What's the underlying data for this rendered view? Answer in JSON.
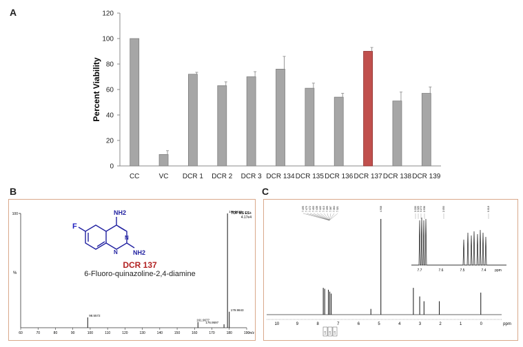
{
  "panels": {
    "a": "A",
    "b": "B",
    "c": "C"
  },
  "chart_data": [
    {
      "type": "bar",
      "panel": "A",
      "ylabel": "Percent Viability",
      "xlabel": "",
      "ylim": [
        0,
        120
      ],
      "yticks": [
        0,
        20,
        40,
        60,
        80,
        100,
        120
      ],
      "categories": [
        "CC",
        "VC",
        "DCR 1",
        "DCR 2",
        "DCR 3",
        "DCR 134",
        "DCR 135",
        "DCR 136",
        "DCR 137",
        "DCR 138",
        "DCR 139"
      ],
      "values": [
        100,
        9,
        72,
        63,
        70,
        76,
        61,
        54,
        90,
        51,
        57
      ],
      "errors": [
        0,
        3,
        1.5,
        3,
        4,
        10,
        4,
        3,
        3,
        7,
        5
      ],
      "colors": [
        "#a6a6a6",
        "#a6a6a6",
        "#a6a6a6",
        "#a6a6a6",
        "#a6a6a6",
        "#a6a6a6",
        "#a6a6a6",
        "#a6a6a6",
        "#c0504d",
        "#a6a6a6",
        "#a6a6a6"
      ],
      "grid": false,
      "legend": false
    },
    {
      "type": "line",
      "panel": "B",
      "title": "TOF MS ES+",
      "subtitle": "4.17e4",
      "ylabel": "%",
      "ylim": [
        0,
        100
      ],
      "yticks": [
        100
      ],
      "xlim": [
        60,
        190
      ],
      "xticks": [
        60,
        70,
        80,
        90,
        100,
        110,
        120,
        130,
        140,
        150,
        160,
        170,
        180,
        190
      ],
      "peaks": [
        {
          "mz": 98.5572,
          "intensity": 9,
          "label": "98.5572"
        },
        {
          "mz": 161.9677,
          "intensity": 5,
          "label": "161.9677"
        },
        {
          "mz": 176.9597,
          "intensity": 3,
          "label": "176.9597"
        },
        {
          "mz": 178.961,
          "intensity": 100,
          "label": "178.9610"
        },
        {
          "mz": 179.9843,
          "intensity": 14,
          "label": "179.9843"
        }
      ]
    },
    {
      "type": "line",
      "panel": "C",
      "xlabel": "ppm",
      "xlim": [
        10.5,
        -1
      ],
      "xticks": [
        10,
        9,
        8,
        7,
        6,
        5,
        4,
        3,
        2,
        1,
        0
      ],
      "peaks": [
        {
          "ppm": 7.73,
          "intensity": 28
        },
        {
          "ppm": 7.66,
          "intensity": 27
        },
        {
          "ppm": 7.48,
          "intensity": 26
        },
        {
          "ppm": 7.41,
          "intensity": 24
        },
        {
          "ppm": 7.34,
          "intensity": 22
        },
        {
          "ppm": 5.4,
          "intensity": 6
        },
        {
          "ppm": 4.91,
          "intensity": 100
        },
        {
          "ppm": 3.32,
          "intensity": 28
        },
        {
          "ppm": 3.01,
          "intensity": 19
        },
        {
          "ppm": 2.8,
          "intensity": 14
        },
        {
          "ppm": 2.05,
          "intensity": 14
        },
        {
          "ppm": 0.02,
          "intensity": 23
        }
      ],
      "peak_labels": [
        "7.495",
        "7.479",
        "7.472",
        "7.453",
        "7.438",
        "7.422",
        "7.410",
        "7.395",
        "7.387",
        "7.364",
        "7.321",
        "3.330",
        "3.326",
        "3.272",
        "2.936",
        "2.050",
        "0.018",
        "4.908"
      ],
      "inset_xticks": [
        "7.7",
        "7.6",
        "7.5",
        "7.4",
        "ppm"
      ],
      "integrals": [
        "1.0",
        "1.0",
        "1.0"
      ]
    }
  ],
  "molecule": {
    "name": "DCR 137",
    "full_name": "6-Fluoro-quinazoline-2,4-diamine",
    "atoms": {
      "fluorine": "F",
      "amine_top": "NH2",
      "amine_right": "NH2",
      "n1": "N",
      "n3": "N"
    }
  }
}
